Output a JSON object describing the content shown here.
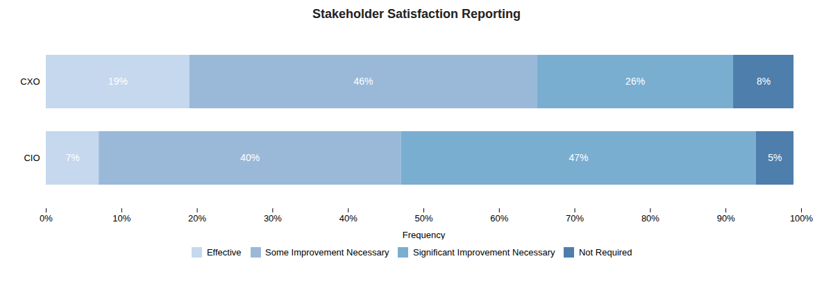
{
  "chart_data": {
    "type": "bar",
    "orientation": "horizontal",
    "stacked": true,
    "title": "Stakeholder Satisfaction Reporting",
    "xlabel": "Frequency",
    "categories": [
      "CIO",
      "CXO"
    ],
    "series": [
      {
        "name": "Effective",
        "color": "#c5d8ed",
        "values": [
          7,
          19
        ],
        "value_labels": [
          "7%",
          "19%"
        ]
      },
      {
        "name": "Some Improvement Necessary",
        "color": "#9ab9d8",
        "values": [
          40,
          46
        ],
        "value_labels": [
          "40%",
          "46%"
        ]
      },
      {
        "name": "Significant Improvement Necessary",
        "color": "#7aaed0",
        "values": [
          47,
          26
        ],
        "value_labels": [
          "47%",
          "26%"
        ]
      },
      {
        "name": "Not Required",
        "color": "#4d7eac",
        "values": [
          5,
          8
        ],
        "value_labels": [
          "5%",
          "8%"
        ]
      }
    ],
    "xlim": [
      0,
      100
    ],
    "xticks": [
      {
        "value": 0,
        "label": "0%"
      },
      {
        "value": 10,
        "label": "10%"
      },
      {
        "value": 20,
        "label": "20%"
      },
      {
        "value": 30,
        "label": "30%"
      },
      {
        "value": 40,
        "label": "40%"
      },
      {
        "value": 50,
        "label": "50%"
      },
      {
        "value": 60,
        "label": "60%"
      },
      {
        "value": 70,
        "label": "70%"
      },
      {
        "value": 80,
        "label": "80%"
      },
      {
        "value": 90,
        "label": "90%"
      },
      {
        "value": 100,
        "label": "100%"
      }
    ],
    "data_labels": true,
    "legend": "bottom",
    "grid": false
  }
}
